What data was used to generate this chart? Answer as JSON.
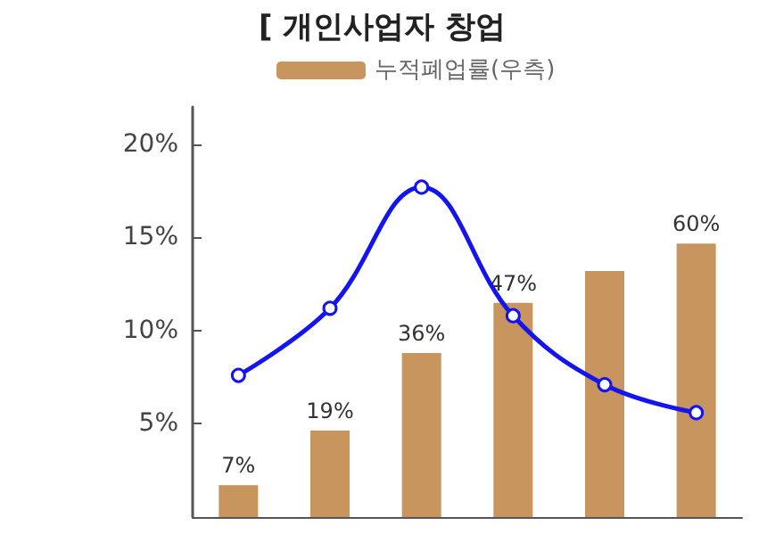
{
  "chart_data": {
    "type": "bar",
    "title": "[ 개인사업자 창업",
    "categories": [
      null,
      null,
      null,
      null,
      null,
      null
    ],
    "series": [
      {
        "name": "누적폐업률(우측)",
        "axis": "y2",
        "color": "#c8955f",
        "values": [
          7,
          19,
          36,
          47,
          54,
          60
        ],
        "value_labels": [
          "7%",
          "19%",
          "36%",
          "47%",
          null,
          "60%"
        ]
      },
      {
        "type": "line",
        "color": "#1414f0",
        "values": [
          7.6,
          11.2,
          17.7,
          10.8,
          7.1,
          5.6
        ]
      }
    ],
    "ylim": [
      0,
      22
    ],
    "yticks": [
      {
        "value": 5,
        "label": "5%"
      },
      {
        "value": 10,
        "label": "10%"
      },
      {
        "value": 15,
        "label": "15%"
      },
      {
        "value": 20,
        "label": "20%"
      }
    ],
    "y2lim": [
      0,
      90
    ],
    "grid": false,
    "legend": "top",
    "marker": "circle",
    "line_style": "solid",
    "tick_labels": "y"
  }
}
